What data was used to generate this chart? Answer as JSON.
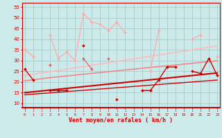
{
  "bg_color": "#cceaea",
  "grid_color": "#aacccc",
  "xlabel": "Vent moyen/en rafales ( km/h )",
  "xlabel_color": "#cc0000",
  "tick_color": "#cc0000",
  "x_ticks": [
    0,
    1,
    2,
    3,
    4,
    5,
    6,
    7,
    8,
    9,
    10,
    11,
    12,
    13,
    14,
    15,
    16,
    17,
    18,
    19,
    20,
    21,
    22,
    23
  ],
  "ylim": [
    8,
    57
  ],
  "xlim": [
    -0.3,
    23.3
  ],
  "yticks": [
    10,
    15,
    20,
    25,
    30,
    35,
    40,
    45,
    50,
    55
  ],
  "series": [
    {
      "color": "#ffaaaa",
      "lw": 0.9,
      "marker": "D",
      "ms": 2.0,
      "zorder": 3,
      "data": [
        35,
        32,
        null,
        42,
        31,
        34,
        30,
        52,
        48,
        47,
        44,
        48,
        43,
        null,
        null,
        25,
        44,
        null,
        null,
        null,
        40,
        42,
        null,
        32
      ]
    },
    {
      "color": "#dd6666",
      "lw": 0.9,
      "marker": "D",
      "ms": 2.0,
      "zorder": 3,
      "data": [
        null,
        null,
        null,
        28,
        null,
        16,
        null,
        31,
        26,
        null,
        31,
        null,
        null,
        null,
        16,
        16,
        null,
        27,
        null,
        null,
        null,
        null,
        31,
        null
      ]
    },
    {
      "color": "#cc0000",
      "lw": 1.0,
      "marker": "D",
      "ms": 2.0,
      "zorder": 4,
      "data": [
        26,
        21,
        null,
        16,
        16,
        16,
        null,
        37,
        null,
        null,
        null,
        12,
        null,
        null,
        16,
        16,
        21,
        27,
        27,
        null,
        25,
        24,
        31,
        23
      ]
    },
    {
      "color": "#ffbbbb",
      "lw": 1.2,
      "marker": null,
      "ms": 0,
      "zorder": 2,
      "data": [
        23.0,
        23.6,
        24.2,
        24.8,
        25.4,
        26.0,
        26.6,
        27.2,
        27.8,
        28.4,
        29.0,
        29.6,
        30.2,
        30.8,
        31.4,
        32.0,
        32.6,
        33.2,
        33.8,
        34.4,
        35.0,
        35.6,
        36.2,
        36.8
      ]
    },
    {
      "color": "#ee8888",
      "lw": 1.2,
      "marker": null,
      "ms": 0,
      "zorder": 2,
      "data": [
        20.5,
        21.0,
        21.5,
        22.0,
        22.4,
        22.8,
        23.2,
        23.6,
        24.0,
        24.4,
        24.8,
        25.2,
        25.6,
        26.0,
        26.4,
        26.8,
        27.2,
        27.5,
        27.9,
        28.3,
        28.7,
        29.1,
        29.5,
        29.9
      ]
    },
    {
      "color": "#cc0000",
      "lw": 1.5,
      "marker": null,
      "ms": 0,
      "zorder": 2,
      "data": [
        15.0,
        15.4,
        15.8,
        16.2,
        16.6,
        17.0,
        17.4,
        17.8,
        18.2,
        18.6,
        19.0,
        19.4,
        19.8,
        20.2,
        20.6,
        21.0,
        21.4,
        21.8,
        22.2,
        22.6,
        23.0,
        23.4,
        23.8,
        24.2
      ]
    },
    {
      "color": "#cc0000",
      "lw": 1.0,
      "marker": null,
      "ms": 0,
      "zorder": 2,
      "data": [
        14.0,
        14.3,
        14.6,
        14.9,
        15.2,
        15.5,
        15.8,
        16.1,
        16.4,
        16.7,
        17.0,
        17.3,
        17.6,
        17.9,
        18.2,
        18.5,
        18.8,
        19.1,
        19.4,
        19.7,
        20.0,
        20.3,
        20.6,
        20.9
      ]
    }
  ]
}
